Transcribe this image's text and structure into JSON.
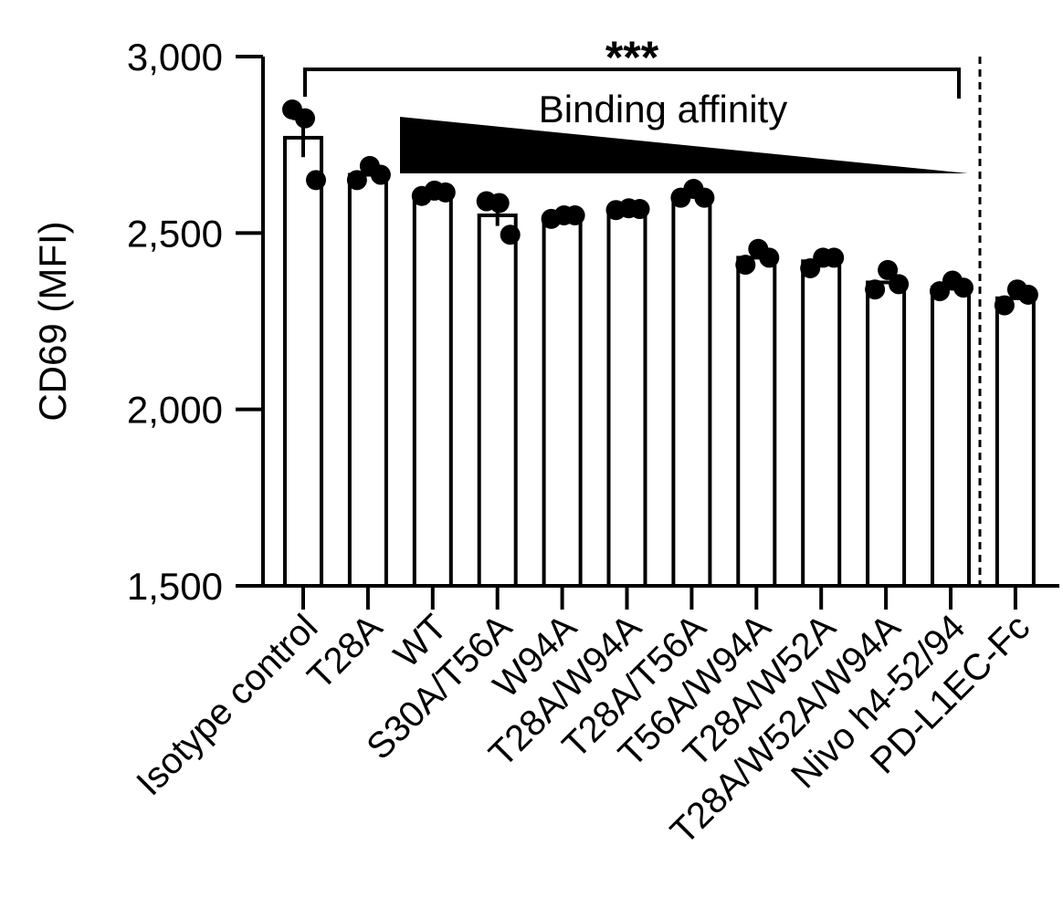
{
  "chart_data": {
    "type": "bar",
    "ylabel": "CD69 (MFI)",
    "ylim": [
      1500,
      3000
    ],
    "yticks": [
      1500,
      2000,
      2500,
      3000
    ],
    "ytick_labels": [
      "1,500",
      "2,000",
      "2,500",
      "3,000"
    ],
    "categories": [
      "Isotype control",
      "T28A",
      "WT",
      "S30A/T56A",
      "W94A",
      "T28A/W94A",
      "T28A/T56A",
      "T56A/W94A",
      "T28A/W52A",
      "T28A/W52A/W94A",
      "Nivo h4-52/94",
      "PD-L1EC-Fc"
    ],
    "values": [
      2770,
      2665,
      2610,
      2550,
      2545,
      2565,
      2605,
      2430,
      2420,
      2360,
      2345,
      2315
    ],
    "errors": [
      55,
      0,
      0,
      30,
      0,
      0,
      0,
      0,
      0,
      0,
      0,
      0
    ],
    "points": [
      [
        2850,
        2825,
        2650
      ],
      [
        2650,
        2690,
        2665
      ],
      [
        2605,
        2620,
        2615
      ],
      [
        2590,
        2585,
        2495
      ],
      [
        2540,
        2550,
        2550
      ],
      [
        2565,
        2570,
        2568
      ],
      [
        2600,
        2625,
        2600
      ],
      [
        2410,
        2455,
        2430
      ],
      [
        2400,
        2430,
        2430
      ],
      [
        2340,
        2395,
        2355
      ],
      [
        2335,
        2365,
        2345
      ],
      [
        2295,
        2340,
        2325
      ]
    ],
    "grid": false,
    "annotations": {
      "significance": "***",
      "gradient_label": "Binding affinity"
    }
  }
}
